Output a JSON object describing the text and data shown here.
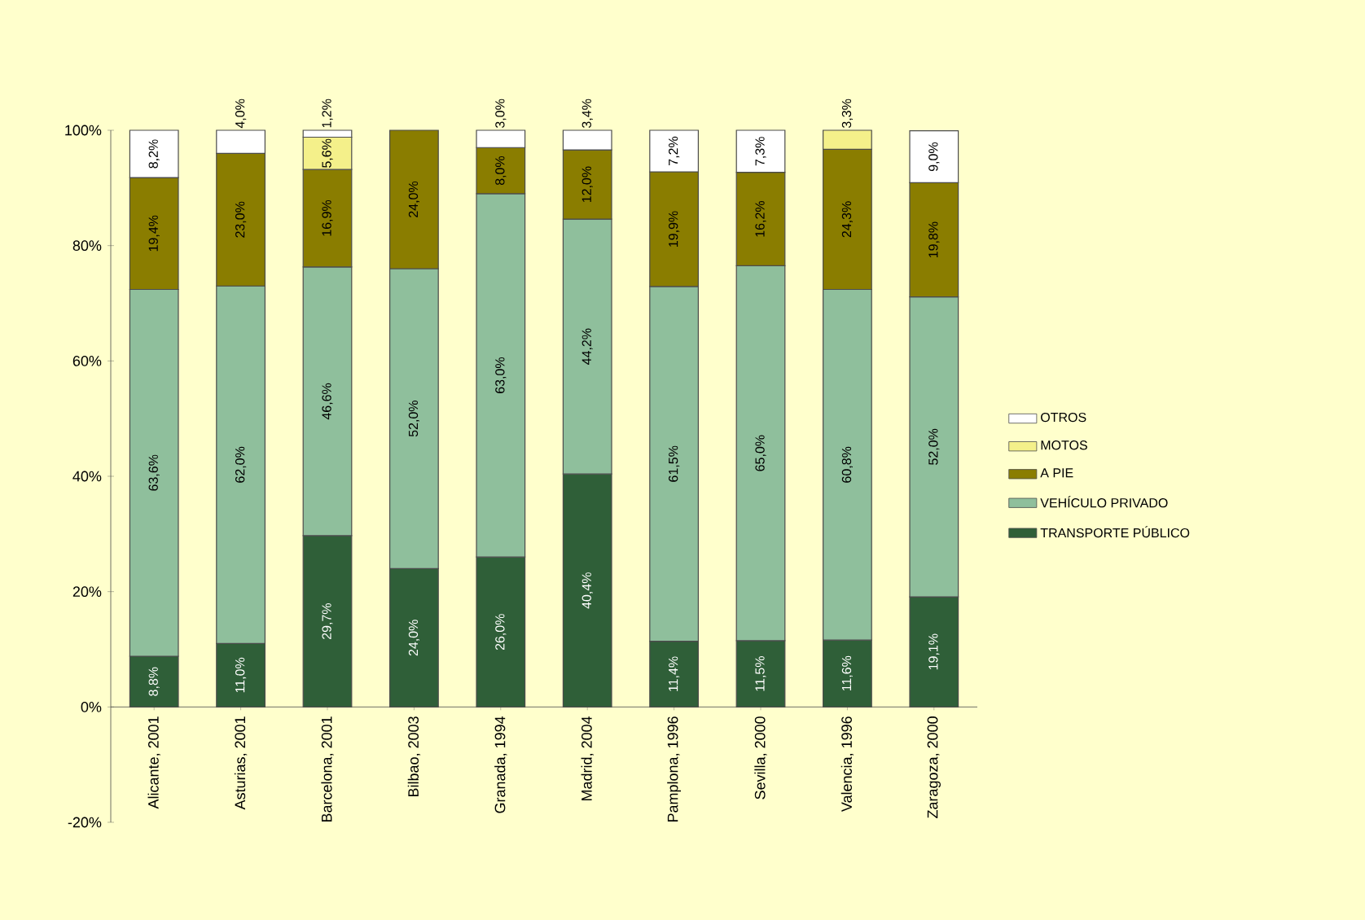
{
  "chart_data": {
    "type": "bar",
    "stacked": true,
    "legend": "right",
    "categories": [
      "Alicante, 2001",
      "Asturias, 2001",
      "Barcelona, 2001",
      "Bilbao, 2003",
      "Granada, 1994",
      "Madrid, 2004",
      "Pamplona, 1996",
      "Sevilla, 2000",
      "Valencia, 1996",
      "Zaragoza, 2000"
    ],
    "series": [
      {
        "name": "TRANSPORTE PÚBLICO",
        "color": "#2f5f38",
        "values": [
          8.8,
          11.0,
          29.7,
          24.0,
          26.0,
          40.4,
          11.4,
          11.5,
          11.6,
          19.1
        ],
        "value_labels": [
          "8,8%",
          "11,0%",
          "29,7%",
          "24,0%",
          "26,0%",
          "40,4%",
          "11,4%",
          "11,5%",
          "11,6%",
          "19,1%"
        ]
      },
      {
        "name": "VEHÍCULO PRIVADO",
        "color": "#8fbf9c",
        "values": [
          63.6,
          62.0,
          46.6,
          52.0,
          63.0,
          44.2,
          61.5,
          65.0,
          60.8,
          52.0
        ],
        "value_labels": [
          "63,6%",
          "62,0%",
          "46,6%",
          "52,0%",
          "63,0%",
          "44,2%",
          "61,5%",
          "65,0%",
          "60,8%",
          "52,0%"
        ]
      },
      {
        "name": "A PIE",
        "color": "#8a7d00",
        "values": [
          19.4,
          23.0,
          16.9,
          24.0,
          8.0,
          12.0,
          19.9,
          16.2,
          24.3,
          19.8
        ],
        "value_labels": [
          "19,4%",
          "23,0%",
          "16,9%",
          "24,0%",
          "8,0%",
          "12,0%",
          "19,9%",
          "16,2%",
          "24,3%",
          "19,8%"
        ]
      },
      {
        "name": "MOTOS",
        "color": "#f4f08a",
        "values": [
          null,
          null,
          5.6,
          null,
          null,
          null,
          null,
          null,
          3.3,
          null
        ],
        "value_labels": [
          null,
          null,
          "5,6%",
          null,
          null,
          null,
          null,
          null,
          "3,3%",
          null
        ]
      },
      {
        "name": "OTROS",
        "color": "#ffffff",
        "values": [
          8.2,
          4.0,
          1.2,
          null,
          3.0,
          3.4,
          7.2,
          7.3,
          null,
          9.0
        ],
        "value_labels": [
          "8,2%",
          "4,0%",
          "1,2%",
          null,
          "3,0%",
          "3,4%",
          "7,2%",
          "7,3%",
          null,
          "9,0%"
        ]
      }
    ],
    "ylim": [
      -20,
      100
    ],
    "yticks": [
      {
        "value": -20,
        "label": "-20%"
      },
      {
        "value": 0,
        "label": "0%"
      },
      {
        "value": 20,
        "label": "20%"
      },
      {
        "value": 40,
        "label": "40%"
      },
      {
        "value": 60,
        "label": "60%"
      },
      {
        "value": 80,
        "label": "80%"
      },
      {
        "value": 100,
        "label": "100%"
      }
    ]
  }
}
